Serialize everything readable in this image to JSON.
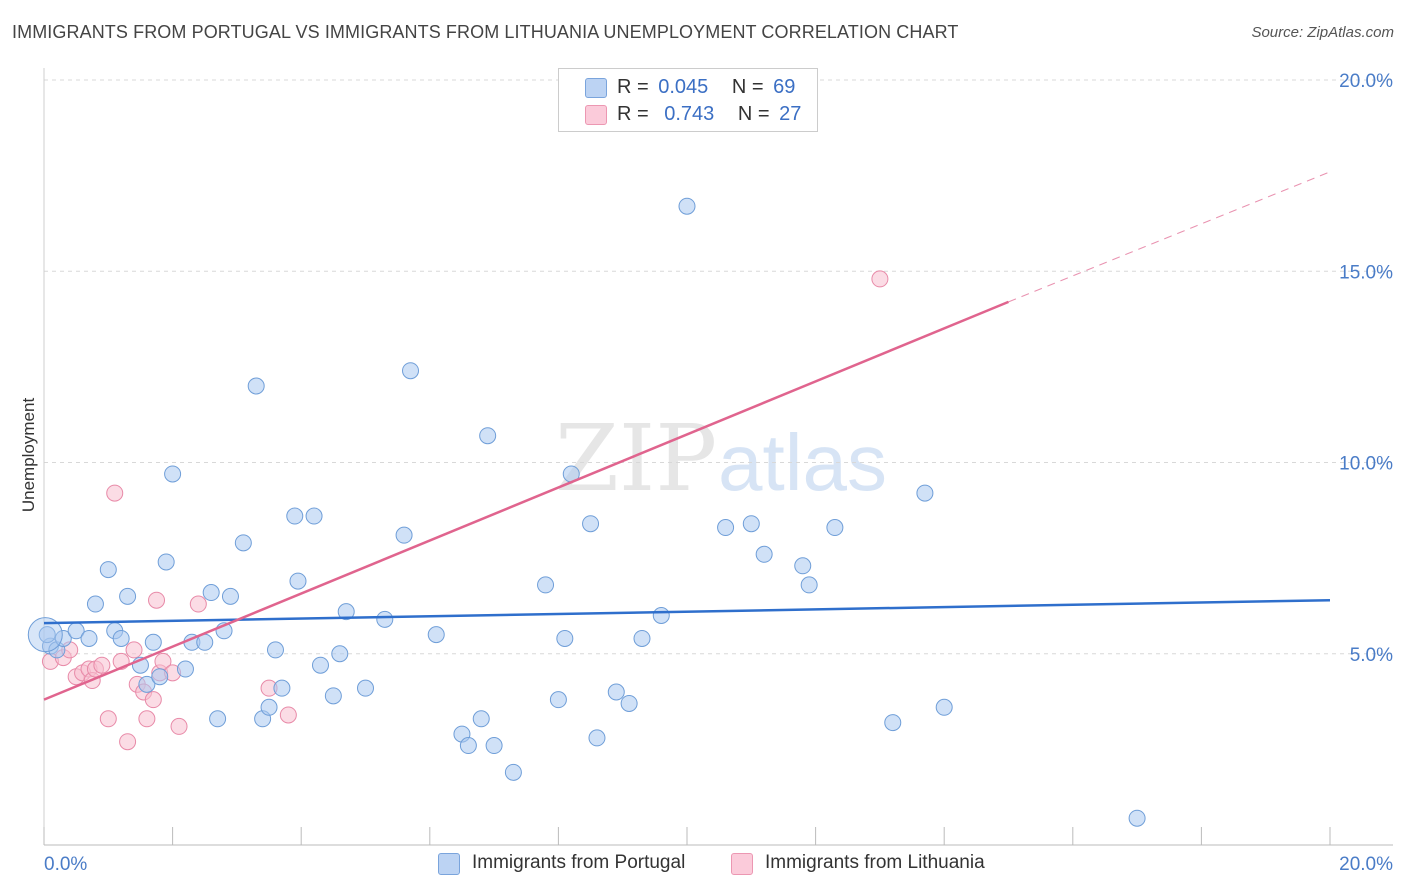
{
  "title": "IMMIGRANTS FROM PORTUGAL VS IMMIGRANTS FROM LITHUANIA UNEMPLOYMENT CORRELATION CHART",
  "source": "Source: ZipAtlas.com",
  "watermark": {
    "zip": "ZIP",
    "atlas": "atlas"
  },
  "legend": {
    "portugal": {
      "r_label": "R =",
      "r_value": "0.045",
      "n_label": "N =",
      "n_value": "69"
    },
    "lithuania": {
      "r_label": "R =",
      "r_value": "0.743",
      "n_label": "N =",
      "n_value": "27"
    }
  },
  "colors": {
    "portugal_fill": "#a9c8f0",
    "portugal_stroke": "#6f9ed8",
    "portugal_line": "#2f6fcc",
    "lithuania_fill": "#f8bfd0",
    "lithuania_stroke": "#e88aa8",
    "lithuania_line": "#e0648e",
    "grid": "#d8d8d8",
    "tick_text": "#4a7cc7"
  },
  "chart_data": {
    "type": "scatter",
    "title": "IMMIGRANTS FROM PORTUGAL VS IMMIGRANTS FROM LITHUANIA UNEMPLOYMENT CORRELATION CHART",
    "xlabel": "",
    "ylabel": "Unemployment",
    "xlim": [
      0,
      20
    ],
    "ylim": [
      0,
      20
    ],
    "x_tick_labels": [
      "0.0%",
      "20.0%"
    ],
    "y_ticks": [
      5,
      10,
      15,
      20
    ],
    "y_tick_labels": [
      "5.0%",
      "10.0%",
      "15.0%",
      "20.0%"
    ],
    "grid": true,
    "legend_position": "bottom",
    "series": [
      {
        "name": "Immigrants from Portugal",
        "r": 0.045,
        "n": 69,
        "trend": {
          "x": [
            0,
            20
          ],
          "y": [
            5.8,
            6.4
          ]
        },
        "points": [
          [
            0.1,
            5.2
          ],
          [
            0.2,
            5.1
          ],
          [
            0.3,
            5.4
          ],
          [
            0.5,
            5.6
          ],
          [
            0.7,
            5.4
          ],
          [
            0.8,
            6.3
          ],
          [
            1.0,
            7.2
          ],
          [
            1.1,
            5.6
          ],
          [
            1.2,
            5.4
          ],
          [
            1.3,
            6.5
          ],
          [
            1.5,
            4.7
          ],
          [
            1.6,
            4.2
          ],
          [
            1.7,
            5.3
          ],
          [
            1.8,
            4.4
          ],
          [
            1.9,
            7.4
          ],
          [
            2.0,
            9.7
          ],
          [
            2.2,
            4.6
          ],
          [
            2.3,
            5.3
          ],
          [
            2.5,
            5.3
          ],
          [
            2.6,
            6.6
          ],
          [
            2.7,
            3.3
          ],
          [
            2.8,
            5.6
          ],
          [
            2.9,
            6.5
          ],
          [
            3.1,
            7.9
          ],
          [
            3.3,
            12.0
          ],
          [
            3.4,
            3.3
          ],
          [
            3.5,
            3.6
          ],
          [
            3.6,
            5.1
          ],
          [
            3.7,
            4.1
          ],
          [
            3.9,
            8.6
          ],
          [
            3.95,
            6.9
          ],
          [
            4.2,
            8.6
          ],
          [
            4.3,
            4.7
          ],
          [
            4.5,
            3.9
          ],
          [
            4.6,
            5.0
          ],
          [
            4.7,
            6.1
          ],
          [
            5.0,
            4.1
          ],
          [
            5.3,
            5.9
          ],
          [
            5.6,
            8.1
          ],
          [
            5.7,
            12.4
          ],
          [
            6.1,
            5.5
          ],
          [
            6.5,
            2.9
          ],
          [
            6.6,
            2.6
          ],
          [
            6.8,
            3.3
          ],
          [
            6.9,
            10.7
          ],
          [
            7.0,
            2.6
          ],
          [
            7.3,
            1.9
          ],
          [
            7.8,
            6.8
          ],
          [
            8.0,
            3.8
          ],
          [
            8.1,
            5.4
          ],
          [
            8.2,
            9.7
          ],
          [
            8.5,
            8.4
          ],
          [
            8.6,
            2.8
          ],
          [
            8.9,
            4.0
          ],
          [
            9.1,
            3.7
          ],
          [
            9.3,
            5.4
          ],
          [
            9.6,
            6.0
          ],
          [
            10.0,
            16.7
          ],
          [
            10.6,
            8.3
          ],
          [
            11.0,
            8.4
          ],
          [
            11.2,
            7.6
          ],
          [
            11.8,
            7.3
          ],
          [
            11.9,
            6.8
          ],
          [
            12.3,
            8.3
          ],
          [
            13.2,
            3.2
          ],
          [
            13.7,
            9.2
          ],
          [
            14.0,
            3.6
          ],
          [
            17.0,
            0.7
          ],
          [
            0.05,
            5.5
          ]
        ]
      },
      {
        "name": "Immigrants from Lithuania",
        "r": 0.743,
        "n": 27,
        "trend": {
          "x": [
            0,
            15
          ],
          "y": [
            3.8,
            14.2
          ]
        },
        "trend_dashed": {
          "x": [
            15,
            20
          ],
          "y": [
            14.2,
            17.6
          ]
        },
        "points": [
          [
            0.1,
            4.8
          ],
          [
            0.3,
            4.9
          ],
          [
            0.4,
            5.1
          ],
          [
            0.5,
            4.4
          ],
          [
            0.6,
            4.5
          ],
          [
            0.7,
            4.6
          ],
          [
            0.75,
            4.3
          ],
          [
            0.8,
            4.6
          ],
          [
            0.9,
            4.7
          ],
          [
            1.0,
            3.3
          ],
          [
            1.1,
            9.2
          ],
          [
            1.2,
            4.8
          ],
          [
            1.3,
            2.7
          ],
          [
            1.4,
            5.1
          ],
          [
            1.45,
            4.2
          ],
          [
            1.55,
            4.0
          ],
          [
            1.6,
            3.3
          ],
          [
            1.7,
            3.8
          ],
          [
            1.75,
            6.4
          ],
          [
            1.8,
            4.5
          ],
          [
            1.85,
            4.8
          ],
          [
            2.0,
            4.5
          ],
          [
            2.1,
            3.1
          ],
          [
            2.4,
            6.3
          ],
          [
            3.5,
            4.1
          ],
          [
            3.8,
            3.4
          ],
          [
            13.0,
            14.8
          ]
        ]
      }
    ]
  },
  "bottom_legend": {
    "portugal": "Immigrants from Portugal",
    "lithuania": "Immigrants from Lithuania"
  }
}
